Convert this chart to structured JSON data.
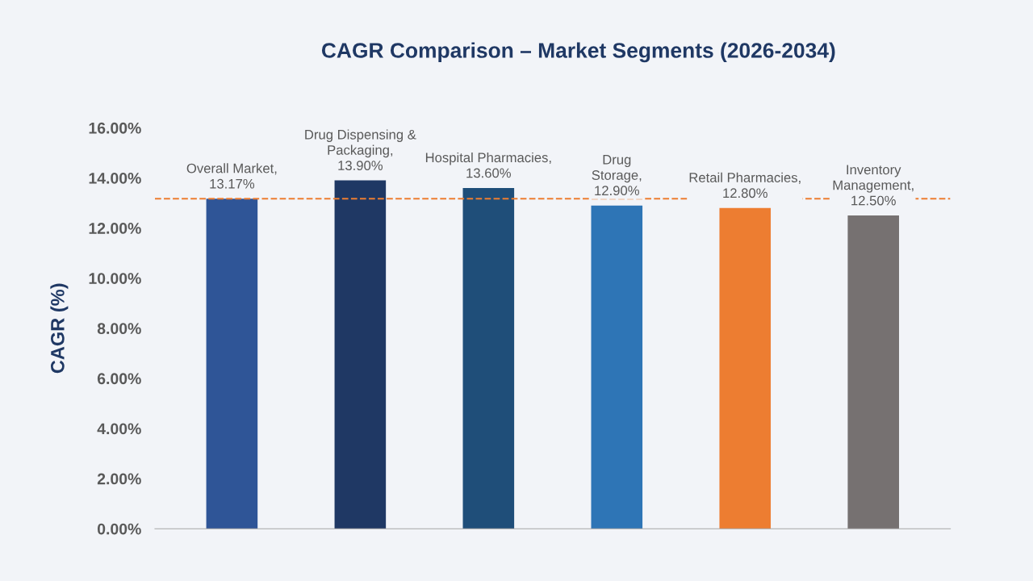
{
  "chart_data": {
    "type": "bar",
    "title": "CAGR Comparison – Market Segments (2026-2034)",
    "ylabel": "CAGR (%)",
    "categories": [
      null,
      null,
      null,
      null,
      null,
      null
    ],
    "values": [
      13.17,
      13.9,
      13.6,
      12.9,
      12.8,
      12.5
    ],
    "value_labels": [
      "Overall Market,\n13.17%",
      "Drug Dispensing &\nPackaging,\n13.90%",
      "Hospital Pharmacies,\n13.60%",
      "Drug\nStorage,\n12.90%",
      "Retail Pharmacies,\n12.80%",
      "Inventory\nManagement,\n12.50%"
    ],
    "colors": [
      "#2f5597",
      "#1f3864",
      "#1f4e79",
      "#2e75b6",
      "#ed7d31",
      "#767171"
    ],
    "ylim": [
      0,
      16
    ],
    "yticks": [
      {
        "value": 0,
        "label": "0.00%"
      },
      {
        "value": 2,
        "label": "2.00%"
      },
      {
        "value": 4,
        "label": "4.00%"
      },
      {
        "value": 6,
        "label": "6.00%"
      },
      {
        "value": 8,
        "label": "8.00%"
      },
      {
        "value": 10,
        "label": "10.00%"
      },
      {
        "value": 12,
        "label": "12.00%"
      },
      {
        "value": 14,
        "label": "14.00%"
      },
      {
        "value": 16,
        "label": "16.00%"
      }
    ],
    "ref_lines": [
      {
        "axis": "y",
        "value": 13.17,
        "color": "#ed7d31",
        "line_style": "dashed"
      }
    ],
    "grid": false,
    "legend": false
  }
}
